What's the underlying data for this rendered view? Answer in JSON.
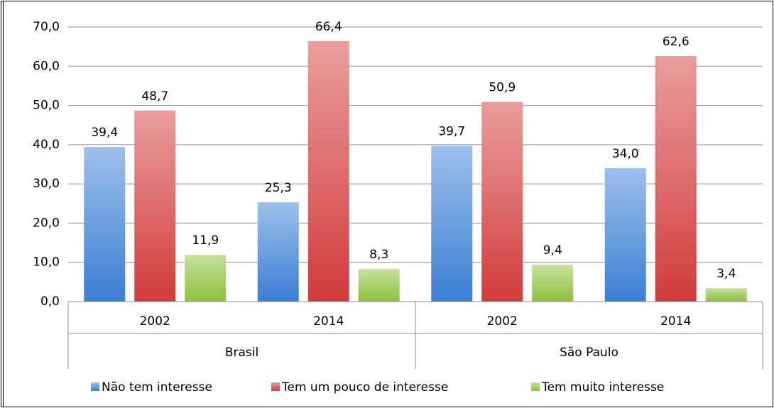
{
  "chart_data": {
    "type": "bar",
    "categories": [
      "2002",
      "2014",
      "2002",
      "2014"
    ],
    "groups": [
      "Brasil",
      "São Paulo"
    ],
    "series": [
      {
        "name": "Não tem interesse",
        "color": "#3b7fd4",
        "values": [
          39.4,
          25.3,
          39.7,
          34.0
        ],
        "value_labels": [
          "39,4",
          "25,3",
          "39,7",
          "34,0"
        ]
      },
      {
        "name": "Tem um pouco de interesse",
        "color": "#d33b3b",
        "values": [
          48.7,
          66.4,
          50.9,
          62.6
        ],
        "value_labels": [
          "48,7",
          "66,4",
          "50,9",
          "62,6"
        ]
      },
      {
        "name": "Tem muito interesse",
        "color": "#8dc03c",
        "values": [
          11.9,
          8.3,
          9.4,
          3.4
        ],
        "value_labels": [
          "11,9",
          "8,3",
          "9,4",
          "3,4"
        ]
      }
    ],
    "ylim": [
      0,
      70
    ],
    "yticks": [
      {
        "value": 0,
        "label": "0,0"
      },
      {
        "value": 10,
        "label": "10,0"
      },
      {
        "value": 20,
        "label": "20,0"
      },
      {
        "value": 30,
        "label": "30,0"
      },
      {
        "value": 40,
        "label": "40,0"
      },
      {
        "value": 50,
        "label": "50,0"
      },
      {
        "value": 60,
        "label": "60,0"
      },
      {
        "value": 70,
        "label": "70,0"
      }
    ],
    "grid": true,
    "legend": "bottom"
  }
}
